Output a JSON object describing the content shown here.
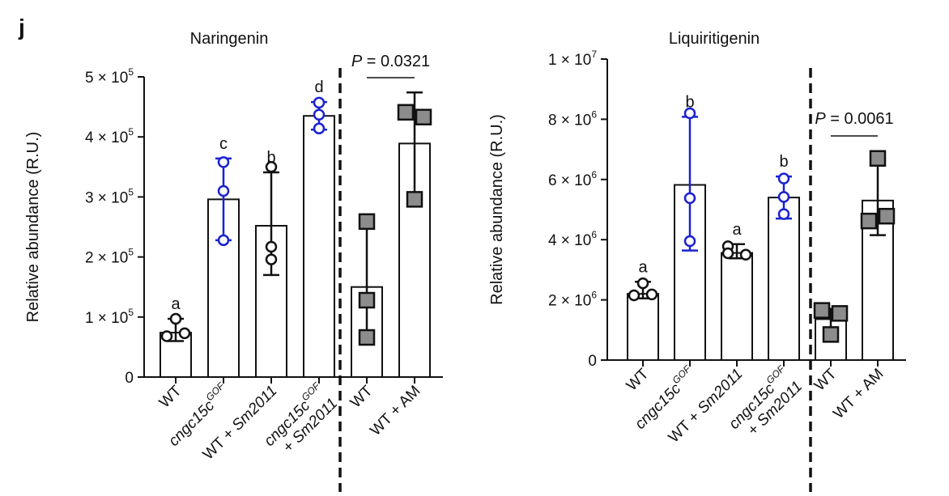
{
  "panel_label": "j",
  "colors": {
    "black": "#111111",
    "blue": "#1a22d0",
    "grey_fill": "#8c8c8c"
  },
  "chart_data": [
    {
      "type": "bar",
      "title": "Naringenin",
      "ylabel": "Relative abundance (R.U.)",
      "ylim": [
        0,
        500000
      ],
      "yticks": [
        {
          "value": 0,
          "base": "0",
          "exp": ""
        },
        {
          "value": 100000,
          "base": "1 × 10",
          "exp": "5"
        },
        {
          "value": 200000,
          "base": "2 × 10",
          "exp": "5"
        },
        {
          "value": 300000,
          "base": "3 × 10",
          "exp": "5"
        },
        {
          "value": 400000,
          "base": "4 × 10",
          "exp": "5"
        },
        {
          "value": 500000,
          "base": "5 × 10",
          "exp": "5"
        }
      ],
      "groups": [
        {
          "label": [
            "WT"
          ],
          "mean": 74000,
          "err_low": 60000,
          "err_high": 97000,
          "points": [
            68000,
            97000,
            73000
          ],
          "marker": "circle",
          "color": "black",
          "letter": "a"
        },
        {
          "label": [
            "cngc15c^GOF"
          ],
          "mean": 296000,
          "err_low": 228000,
          "err_high": 364000,
          "points": [
            358000,
            310000,
            228000
          ],
          "marker": "circle",
          "color": "blue",
          "letter": "c"
        },
        {
          "label": [
            "WT + Sm2011"
          ],
          "mean": 252000,
          "err_low": 170000,
          "err_high": 341000,
          "points": [
            350000,
            217000,
            196000
          ],
          "marker": "circle",
          "color": "black",
          "letter": "b"
        },
        {
          "label": [
            "cngc15c^GOF",
            "+ Sm2011"
          ],
          "mean": 435000,
          "err_low": 412000,
          "err_high": 458000,
          "points": [
            457000,
            437000,
            414000
          ],
          "marker": "circle",
          "color": "blue",
          "letter": "d"
        },
        {
          "label": [
            "WT"
          ],
          "mean": 150000,
          "err_low": 62000,
          "err_high": 259000,
          "points": [
            259000,
            128000,
            66000
          ],
          "marker": "square",
          "color": "black",
          "letter": ""
        },
        {
          "label": [
            "WT + AM"
          ],
          "mean": 389000,
          "err_low": 296000,
          "err_high": 474000,
          "points": [
            441000,
            433000,
            296000
          ],
          "marker": "square",
          "color": "black",
          "letter": ""
        }
      ],
      "pvalue": {
        "label": "P",
        "text": " = 0.0321",
        "between": [
          4,
          5
        ]
      }
    },
    {
      "type": "bar",
      "title": "Liquiritigenin",
      "ylabel": "Relative abundance (R.U.)",
      "ylim": [
        0,
        10000000
      ],
      "yticks": [
        {
          "value": 0,
          "base": "0",
          "exp": ""
        },
        {
          "value": 2000000,
          "base": "2 × 10",
          "exp": "6"
        },
        {
          "value": 4000000,
          "base": "4 × 10",
          "exp": "6"
        },
        {
          "value": 6000000,
          "base": "6 × 10",
          "exp": "6"
        },
        {
          "value": 8000000,
          "base": "8 × 10",
          "exp": "6"
        },
        {
          "value": 10000000,
          "base": "1 × 10",
          "exp": "7"
        }
      ],
      "groups": [
        {
          "label": [
            "WT"
          ],
          "mean": 2200000,
          "err_low": 2050000,
          "err_high": 2600000,
          "points": [
            2550000,
            2150000,
            2180000
          ],
          "marker": "circle",
          "color": "black",
          "letter": "a"
        },
        {
          "label": [
            "cngc15c^GOF"
          ],
          "mean": 5820000,
          "err_low": 3640000,
          "err_high": 8080000,
          "points": [
            8200000,
            5380000,
            3950000
          ],
          "marker": "circle",
          "color": "blue",
          "letter": "b"
        },
        {
          "label": [
            "WT + Sm2011"
          ],
          "mean": 3560000,
          "err_low": 3380000,
          "err_high": 3850000,
          "points": [
            3780000,
            3550000,
            3500000
          ],
          "marker": "circle",
          "color": "black",
          "letter": "a"
        },
        {
          "label": [
            "cngc15c^GOF",
            "+ Sm2011"
          ],
          "mean": 5400000,
          "err_low": 4700000,
          "err_high": 6100000,
          "points": [
            6030000,
            5420000,
            4850000
          ],
          "marker": "circle",
          "color": "blue",
          "letter": "b"
        },
        {
          "label": [
            "WT"
          ],
          "mean": 1360000,
          "err_low": 900000,
          "err_high": 1700000,
          "points": [
            1650000,
            1550000,
            850000
          ],
          "marker": "square",
          "color": "black",
          "letter": ""
        },
        {
          "label": [
            "WT + AM"
          ],
          "mean": 5300000,
          "err_low": 4150000,
          "err_high": 6700000,
          "points": [
            6700000,
            4620000,
            4780000
          ],
          "marker": "square",
          "color": "black",
          "letter": ""
        }
      ],
      "pvalue": {
        "label": "P",
        "text": " = 0.0061",
        "between": [
          4,
          5
        ]
      }
    }
  ]
}
